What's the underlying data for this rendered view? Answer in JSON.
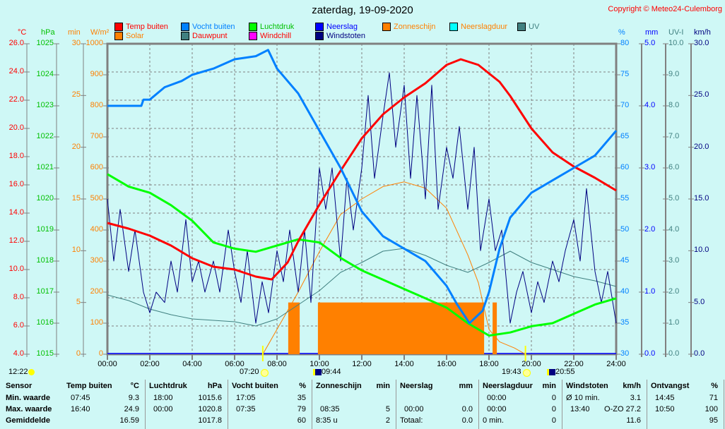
{
  "title": "zaterdag, 19-09-2020",
  "copyright": "Copyright © Meteo24-Culemborg",
  "legend": [
    {
      "label": "Temp buiten",
      "color": "#ff0000",
      "text_color": "#ff0000"
    },
    {
      "label": "Vocht buiten",
      "color": "#0080ff",
      "text_color": "#0080ff"
    },
    {
      "label": "Luchtdruk",
      "color": "#00ff00",
      "text_color": "#00c000"
    },
    {
      "label": "Neerslag",
      "color": "#0000ff",
      "text_color": "#0000ff"
    },
    {
      "label": "Zonneschijn",
      "color": "#ff8000",
      "text_color": "#ff8000"
    },
    {
      "label": "Neerslagduur",
      "color": "#00ffff",
      "text_color": "#ff8000"
    },
    {
      "label": "UV",
      "color": "#408080",
      "text_color": "#408080"
    },
    {
      "label": "Solar",
      "color": "#ff8000",
      "text_color": "#ff8000"
    },
    {
      "label": "Dauwpunt",
      "color": "#408080",
      "text_color": "#ff0000"
    },
    {
      "label": "Windchill",
      "color": "#ff00ff",
      "text_color": "#ff0000"
    },
    {
      "label": "Windstoten",
      "color": "#000080",
      "text_color": "#000080"
    }
  ],
  "chart_data": {
    "type": "line",
    "title": "zaterdag, 19-09-2020",
    "x_ticks": [
      "00:00",
      "02:00",
      "04:00",
      "06:00",
      "08:00",
      "10:00",
      "12:00",
      "14:00",
      "16:00",
      "18:00",
      "20:00",
      "22:00",
      "24:00"
    ],
    "xlim": [
      0,
      24
    ],
    "axes": [
      {
        "unit": "°C",
        "color": "#ff0000",
        "range": [
          4,
          26
        ],
        "ticks": [
          "26.0",
          "24.0",
          "22.0",
          "20.0",
          "18.0",
          "16.0",
          "14.0",
          "12.0",
          "10.0",
          "8.0",
          "6.0",
          "4.0"
        ]
      },
      {
        "unit": "hPa",
        "color": "#00c000",
        "range": [
          1015,
          1025
        ],
        "ticks": [
          "1025",
          "1024",
          "1023",
          "1022",
          "1021",
          "1020",
          "1019",
          "1018",
          "1017",
          "1016",
          "1015"
        ]
      },
      {
        "unit": "min",
        "color": "#ff8000",
        "range": [
          0,
          30
        ],
        "ticks": [
          "30",
          "25",
          "20",
          "15",
          "10",
          "5",
          "0"
        ]
      },
      {
        "unit": "W/m²",
        "color": "#ff8000",
        "range": [
          0,
          1000
        ],
        "ticks": [
          "1000",
          "900",
          "800",
          "700",
          "600",
          "500",
          "400",
          "300",
          "200",
          "100",
          "0"
        ]
      },
      {
        "unit": "%",
        "color": "#0080ff",
        "range": [
          30,
          80
        ],
        "ticks": [
          "80",
          "75",
          "70",
          "65",
          "60",
          "55",
          "50",
          "45",
          "40",
          "35",
          "30"
        ]
      },
      {
        "unit": "mm",
        "color": "#0000ff",
        "range": [
          0,
          5
        ],
        "ticks": [
          "5.0",
          "4.0",
          "3.0",
          "2.0",
          "1.0",
          "0.0"
        ]
      },
      {
        "unit": "UV-I",
        "color": "#408080",
        "range": [
          0,
          10
        ],
        "ticks": [
          "10.0",
          "9.0",
          "8.0",
          "7.0",
          "6.0",
          "5.0",
          "4.0",
          "3.0",
          "2.0",
          "1.0",
          "0.0"
        ]
      },
      {
        "unit": "km/h",
        "color": "#000080",
        "range": [
          0,
          30
        ],
        "ticks": [
          "30.0",
          "25.0",
          "20.0",
          "15.0",
          "10.0",
          "5.0",
          "0.0"
        ]
      }
    ],
    "series": [
      {
        "name": "Temp buiten",
        "axis": 0,
        "color": "#ff0000",
        "width": 3,
        "points": [
          [
            0,
            13.3
          ],
          [
            1,
            12.9
          ],
          [
            2,
            12.4
          ],
          [
            3,
            11.7
          ],
          [
            4,
            10.8
          ],
          [
            5,
            10.2
          ],
          [
            6,
            10.0
          ],
          [
            7,
            9.5
          ],
          [
            7.75,
            9.3
          ],
          [
            8.5,
            10.5
          ],
          [
            9,
            12
          ],
          [
            10,
            14.6
          ],
          [
            11,
            17
          ],
          [
            12,
            19.3
          ],
          [
            13,
            21
          ],
          [
            14,
            22.2
          ],
          [
            15,
            23.2
          ],
          [
            16,
            24.5
          ],
          [
            16.67,
            24.9
          ],
          [
            17.5,
            24.5
          ],
          [
            18.5,
            23.3
          ],
          [
            19,
            22.3
          ],
          [
            20,
            20
          ],
          [
            21,
            18.3
          ],
          [
            22,
            17.3
          ],
          [
            23,
            16.5
          ],
          [
            24,
            15.6
          ]
        ]
      },
      {
        "name": "Vocht buiten",
        "axis": 4,
        "color": "#0080ff",
        "width": 3,
        "points": [
          [
            0,
            70
          ],
          [
            1.6,
            70
          ],
          [
            1.7,
            71
          ],
          [
            2,
            71
          ],
          [
            2.7,
            73
          ],
          [
            3.5,
            74
          ],
          [
            4,
            75
          ],
          [
            5,
            76
          ],
          [
            6,
            77.5
          ],
          [
            7,
            78
          ],
          [
            7.58,
            79
          ],
          [
            8,
            76
          ],
          [
            9,
            72
          ],
          [
            10,
            66
          ],
          [
            11,
            60
          ],
          [
            12,
            53
          ],
          [
            13,
            49
          ],
          [
            14,
            47
          ],
          [
            15,
            45
          ],
          [
            16,
            41
          ],
          [
            16.5,
            38
          ],
          [
            17.08,
            35
          ],
          [
            17.7,
            37
          ],
          [
            18,
            40
          ],
          [
            18.5,
            47
          ],
          [
            19,
            52
          ],
          [
            20,
            56
          ],
          [
            21,
            58
          ],
          [
            22,
            60
          ],
          [
            23,
            62
          ],
          [
            24,
            66
          ]
        ]
      },
      {
        "name": "Luchtdruk",
        "axis": 1,
        "color": "#00ff00",
        "width": 3,
        "points": [
          [
            0,
            1020.8
          ],
          [
            1,
            1020.4
          ],
          [
            2,
            1020.2
          ],
          [
            3,
            1019.8
          ],
          [
            4,
            1019.3
          ],
          [
            5,
            1018.6
          ],
          [
            6,
            1018.4
          ],
          [
            7,
            1018.3
          ],
          [
            8,
            1018.5
          ],
          [
            9,
            1018.7
          ],
          [
            10,
            1018.6
          ],
          [
            11,
            1018.1
          ],
          [
            12,
            1017.7
          ],
          [
            13,
            1017.4
          ],
          [
            14,
            1017.1
          ],
          [
            15,
            1016.8
          ],
          [
            16,
            1016.5
          ],
          [
            17,
            1016
          ],
          [
            18,
            1015.6
          ],
          [
            19,
            1015.7
          ],
          [
            20,
            1015.9
          ],
          [
            21,
            1016
          ],
          [
            22,
            1016.3
          ],
          [
            23,
            1016.6
          ],
          [
            24,
            1016.8
          ]
        ]
      },
      {
        "name": "Solar",
        "axis": 3,
        "color": "#ff8000",
        "width": 1,
        "points": [
          [
            7.33,
            0
          ],
          [
            8,
            80
          ],
          [
            9,
            200
          ],
          [
            10,
            330
          ],
          [
            11,
            450
          ],
          [
            12,
            500
          ],
          [
            13,
            540
          ],
          [
            14,
            555
          ],
          [
            15,
            535
          ],
          [
            16,
            470
          ],
          [
            17,
            320
          ],
          [
            17.5,
            230
          ],
          [
            18,
            80
          ],
          [
            18.5,
            40
          ],
          [
            19.2,
            20
          ],
          [
            19.72,
            0
          ]
        ]
      },
      {
        "name": "Dauwpunt",
        "axis": 0,
        "color": "#408080",
        "width": 1,
        "points": [
          [
            0,
            8.2
          ],
          [
            1,
            7.8
          ],
          [
            2,
            7.2
          ],
          [
            3,
            6.8
          ],
          [
            4,
            6.5
          ],
          [
            5,
            6.4
          ],
          [
            6,
            6.3
          ],
          [
            7,
            6.0
          ],
          [
            8,
            6.5
          ],
          [
            9,
            7.5
          ],
          [
            10,
            8.5
          ],
          [
            11,
            9.8
          ],
          [
            12,
            10.5
          ],
          [
            13,
            11.3
          ],
          [
            14,
            11.5
          ],
          [
            15,
            11.0
          ],
          [
            16,
            10.3
          ],
          [
            17,
            9.8
          ],
          [
            18,
            10.5
          ],
          [
            19,
            11.3
          ],
          [
            20,
            10.5
          ],
          [
            21,
            10.0
          ],
          [
            22,
            9.5
          ],
          [
            23,
            9.2
          ],
          [
            24,
            8.8
          ]
        ]
      },
      {
        "name": "Windstoten",
        "axis": 7,
        "color": "#000080",
        "width": 1,
        "points": [
          [
            0,
            15
          ],
          [
            0.3,
            9
          ],
          [
            0.6,
            14
          ],
          [
            1,
            8
          ],
          [
            1.3,
            12
          ],
          [
            1.7,
            6
          ],
          [
            2,
            4
          ],
          [
            2.3,
            6
          ],
          [
            2.7,
            5
          ],
          [
            3,
            9
          ],
          [
            3.3,
            6
          ],
          [
            3.7,
            13
          ],
          [
            4,
            7
          ],
          [
            4.3,
            9
          ],
          [
            4.6,
            6
          ],
          [
            5,
            9
          ],
          [
            5.3,
            6
          ],
          [
            5.7,
            12
          ],
          [
            6,
            8
          ],
          [
            6.3,
            5
          ],
          [
            6.6,
            10
          ],
          [
            7,
            3
          ],
          [
            7.3,
            7
          ],
          [
            7.6,
            4
          ],
          [
            8,
            10
          ],
          [
            8.3,
            7
          ],
          [
            8.6,
            12
          ],
          [
            9,
            6
          ],
          [
            9.3,
            12
          ],
          [
            9.6,
            5
          ],
          [
            10,
            18
          ],
          [
            10.3,
            14
          ],
          [
            10.6,
            18
          ],
          [
            11,
            9
          ],
          [
            11.3,
            17
          ],
          [
            11.6,
            12
          ],
          [
            12,
            18
          ],
          [
            12.3,
            25
          ],
          [
            12.6,
            17
          ],
          [
            13,
            23
          ],
          [
            13.3,
            27.2
          ],
          [
            13.6,
            20
          ],
          [
            14,
            26
          ],
          [
            14.3,
            17
          ],
          [
            14.6,
            25
          ],
          [
            15,
            15
          ],
          [
            15.3,
            26
          ],
          [
            15.6,
            14
          ],
          [
            16,
            20
          ],
          [
            16.3,
            17
          ],
          [
            16.6,
            22
          ],
          [
            17,
            14
          ],
          [
            17.3,
            20
          ],
          [
            17.6,
            10
          ],
          [
            18,
            15
          ],
          [
            18.3,
            10
          ],
          [
            18.6,
            12
          ],
          [
            19,
            3
          ],
          [
            19.3,
            6
          ],
          [
            19.6,
            8
          ],
          [
            20,
            4
          ],
          [
            20.3,
            7
          ],
          [
            20.6,
            5
          ],
          [
            21,
            9
          ],
          [
            21.3,
            7
          ],
          [
            21.6,
            10
          ],
          [
            22,
            13
          ],
          [
            22.3,
            9
          ],
          [
            22.6,
            16
          ],
          [
            23,
            8
          ],
          [
            23.3,
            5
          ],
          [
            23.6,
            8
          ],
          [
            24,
            3
          ]
        ]
      }
    ],
    "bars": {
      "name": "Zonneschijn",
      "axis": 2,
      "color": "#ff8000",
      "intervals": [
        [
          8.53,
          9.07,
          5
        ],
        [
          9.93,
          17.77,
          5
        ],
        [
          18.17,
          18.37,
          5
        ]
      ]
    },
    "events": [
      {
        "time": "12:22",
        "icon": "moon-icon"
      },
      {
        "time": "07:20",
        "icon": "sunrise-icon"
      },
      {
        "time": "09:44",
        "icon": "moonrise-icon"
      },
      {
        "time": "19:43",
        "icon": "sunset-icon"
      },
      {
        "time": "20:55",
        "icon": "moonset-icon"
      }
    ]
  },
  "table": {
    "row_labels": [
      "Sensor",
      "Min. waarde",
      "Max. waarde",
      "Gemiddelde"
    ],
    "columns": [
      {
        "name": "Temp buiten",
        "unit": "°C",
        "rows": [
          [
            "07:45",
            "9.3"
          ],
          [
            "16:40",
            "24.9"
          ],
          [
            "",
            "16.59"
          ]
        ]
      },
      {
        "name": "Luchtdruk",
        "unit": "hPa",
        "rows": [
          [
            "18:00",
            "1015.6"
          ],
          [
            "00:00",
            "1020.8"
          ],
          [
            "",
            "1017.8"
          ]
        ]
      },
      {
        "name": "Vocht buiten",
        "unit": "%",
        "rows": [
          [
            "17:05",
            "35"
          ],
          [
            "07:35",
            "79"
          ],
          [
            "",
            "60"
          ]
        ]
      },
      {
        "name": "Zonneschijn",
        "unit": "min",
        "rows": [
          [
            "",
            ""
          ],
          [
            "08:35",
            "5"
          ],
          [
            "8:35 u",
            "2"
          ]
        ]
      },
      {
        "name": "Neerslag",
        "unit": "mm",
        "rows": [
          [
            "",
            ""
          ],
          [
            "00:00",
            "0.0"
          ],
          [
            "Totaal:",
            "0.0"
          ]
        ]
      },
      {
        "name": "Neerslagduur",
        "unit": "min",
        "rows": [
          [
            "00:00",
            "0"
          ],
          [
            "00:00",
            "0"
          ],
          [
            "0 min.",
            "0"
          ]
        ]
      },
      {
        "name": "Windstoten",
        "unit": "km/h",
        "rows": [
          [
            "Ø 10 min.",
            "3.1"
          ],
          [
            "13:40",
            "O-ZO 27.2"
          ],
          [
            "",
            "11.6"
          ]
        ]
      },
      {
        "name": "Ontvangst",
        "unit": "%",
        "rows": [
          [
            "14:45",
            "71"
          ],
          [
            "10:50",
            "100"
          ],
          [
            "",
            "95"
          ]
        ]
      }
    ]
  }
}
